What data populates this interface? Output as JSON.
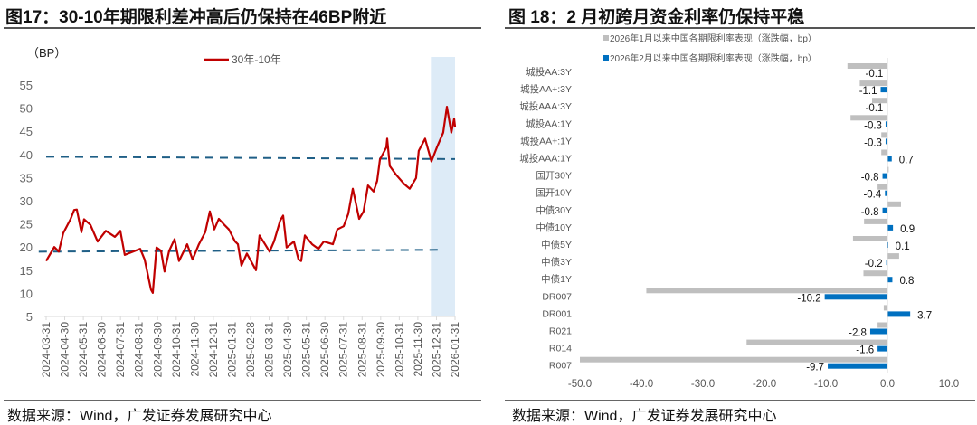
{
  "left": {
    "title": "图17：30-10年期限利差冲高后仍保持在46BP附近",
    "source": "数据来源：Wind，广发证券发展研究中心"
  },
  "right": {
    "title": "图 18：2 月初跨月资金利率仍保持平稳",
    "source": "数据来源：Wind，广发证券发展研究中心"
  },
  "chart_data": [
    {
      "type": "line",
      "ylabel": "（BP）",
      "ylim": [
        5,
        55
      ],
      "yticks": [
        5,
        10,
        15,
        20,
        25,
        30,
        35,
        40,
        45,
        50,
        55
      ],
      "xticks": [
        "2024-03-31",
        "2024-04-30",
        "2024-05-31",
        "2024-06-30",
        "2024-07-31",
        "2024-08-31",
        "2024-09-30",
        "2024-10-31",
        "2024-11-30",
        "2024-12-31",
        "2025-01-31",
        "2025-02-28",
        "2025-03-31",
        "2025-04-30",
        "2025-05-31",
        "2025-06-30",
        "2025-07-31",
        "2025-08-31",
        "2025-09-30",
        "2025-10-31",
        "2025-11-30",
        "2025-12-31",
        "2026-01-31"
      ],
      "x_unit": "months since 2024-03-31",
      "legend": "30年-10年",
      "line_color": "#C00000",
      "ref_color": "#1F5F86",
      "highlight_color": "#DDEBF7",
      "highlight_range_months": [
        20.7,
        22
      ],
      "reference_lines": [
        {
          "from": [
            0,
            39.5
          ],
          "to": [
            22,
            39.0
          ]
        },
        {
          "from": [
            -0.4,
            19.0
          ],
          "to": [
            21.4,
            19.4
          ]
        }
      ],
      "series": [
        [
          0,
          17
        ],
        [
          0.44,
          20
        ],
        [
          0.68,
          19
        ],
        [
          0.92,
          23
        ],
        [
          1.31,
          26
        ],
        [
          1.51,
          28
        ],
        [
          1.65,
          28.1
        ],
        [
          1.9,
          23.2
        ],
        [
          2.04,
          26
        ],
        [
          2.38,
          24.8
        ],
        [
          2.77,
          21.2
        ],
        [
          3.21,
          23.5
        ],
        [
          3.7,
          22.2
        ],
        [
          3.99,
          23.5
        ],
        [
          4.23,
          18.3
        ],
        [
          4.67,
          19
        ],
        [
          5.06,
          19.6
        ],
        [
          5.3,
          17.3
        ],
        [
          5.64,
          10.8
        ],
        [
          5.74,
          10.1
        ],
        [
          5.94,
          19.9
        ],
        [
          6.18,
          19.2
        ],
        [
          6.37,
          14.7
        ],
        [
          6.62,
          19.2
        ],
        [
          6.91,
          21.7
        ],
        [
          7.15,
          17
        ],
        [
          7.59,
          20.6
        ],
        [
          7.88,
          17.3
        ],
        [
          8.22,
          20.6
        ],
        [
          8.56,
          23.2
        ],
        [
          8.81,
          27.7
        ],
        [
          9.05,
          23.8
        ],
        [
          9.29,
          26.1
        ],
        [
          9.59,
          24.8
        ],
        [
          9.83,
          23.8
        ],
        [
          10.17,
          21.2
        ],
        [
          10.32,
          20.6
        ],
        [
          10.51,
          16
        ],
        [
          10.8,
          18.6
        ],
        [
          11.29,
          15
        ],
        [
          11.48,
          22.5
        ],
        [
          11.78,
          20.6
        ],
        [
          12.02,
          19
        ],
        [
          12.26,
          21.2
        ],
        [
          12.6,
          25.8
        ],
        [
          12.75,
          26.8
        ],
        [
          12.94,
          19.9
        ],
        [
          13.33,
          21.2
        ],
        [
          13.58,
          17.3
        ],
        [
          13.72,
          17
        ],
        [
          13.92,
          22.5
        ],
        [
          14.31,
          20.6
        ],
        [
          14.65,
          19.6
        ],
        [
          14.94,
          21.2
        ],
        [
          15.43,
          20.6
        ],
        [
          15.67,
          23.8
        ],
        [
          16.01,
          24.5
        ],
        [
          16.25,
          27.1
        ],
        [
          16.5,
          32.6
        ],
        [
          16.84,
          26.1
        ],
        [
          17.08,
          27.7
        ],
        [
          17.32,
          33.3
        ],
        [
          17.62,
          32
        ],
        [
          17.81,
          34.3
        ],
        [
          17.96,
          38.9
        ],
        [
          18.3,
          41.5
        ],
        [
          18.35,
          43.4
        ],
        [
          18.49,
          37.5
        ],
        [
          18.83,
          35.6
        ],
        [
          19.27,
          33.6
        ],
        [
          19.56,
          32.6
        ],
        [
          19.9,
          34.9
        ],
        [
          20.05,
          40.8
        ],
        [
          20.39,
          43.4
        ],
        [
          20.73,
          38.5
        ],
        [
          21.02,
          41.5
        ],
        [
          21.36,
          44.7
        ],
        [
          21.56,
          50.3
        ],
        [
          21.8,
          44.7
        ],
        [
          21.95,
          47.7
        ],
        [
          22,
          46
        ]
      ]
    },
    {
      "type": "bar",
      "orientation": "horizontal",
      "xlim": [
        -50,
        10
      ],
      "xticks": [
        "-50.0",
        "-40.0",
        "-30.0",
        "-20.0",
        "-10.0",
        "0.0",
        "10.0"
      ],
      "categories": [
        "城投AA:3Y",
        "城投AA+:3Y",
        "城投AAA:3Y",
        "城投AA:1Y",
        "城投AA+:1Y",
        "城投AAA:1Y",
        "国开30Y",
        "国开10Y",
        "中债30Y",
        "中债10Y",
        "中债5Y",
        "中债3Y",
        "中债1Y",
        "DR007",
        "DR001",
        "R021",
        "R014",
        "R007"
      ],
      "series": [
        {
          "name": "2026年1月以来中国各期限利率表现（涨跌幅，bp）",
          "color": "#BFBFBF",
          "values": [
            -6.5,
            -4.5,
            -2.5,
            -6.0,
            -1.0,
            -1.0,
            0.2,
            -1.6,
            2.2,
            -3.8,
            -5.6,
            1.9,
            -3.9,
            -39.2,
            -0.6,
            -1.6,
            -22.9,
            -50.0
          ]
        },
        {
          "name": "2026年2月以来中国各期限利率表现（涨跌幅，bp）",
          "color": "#0070C0",
          "values": [
            -0.1,
            -1.1,
            -0.1,
            -0.3,
            -0.3,
            0.7,
            -0.8,
            -0.4,
            -0.8,
            0.9,
            0.1,
            -0.2,
            0.8,
            -10.2,
            3.7,
            -2.8,
            -1.6,
            -9.7
          ],
          "labels": [
            "-0.1",
            "-1.1",
            "-0.1",
            "-0.3",
            "-0.3",
            "0.7",
            "-0.8",
            "-0.4",
            "-0.8",
            "0.9",
            "0.1",
            "-0.2",
            "0.8",
            "-10.2",
            "3.7",
            "-2.8",
            "-1.6",
            "-9.7"
          ]
        }
      ]
    }
  ]
}
